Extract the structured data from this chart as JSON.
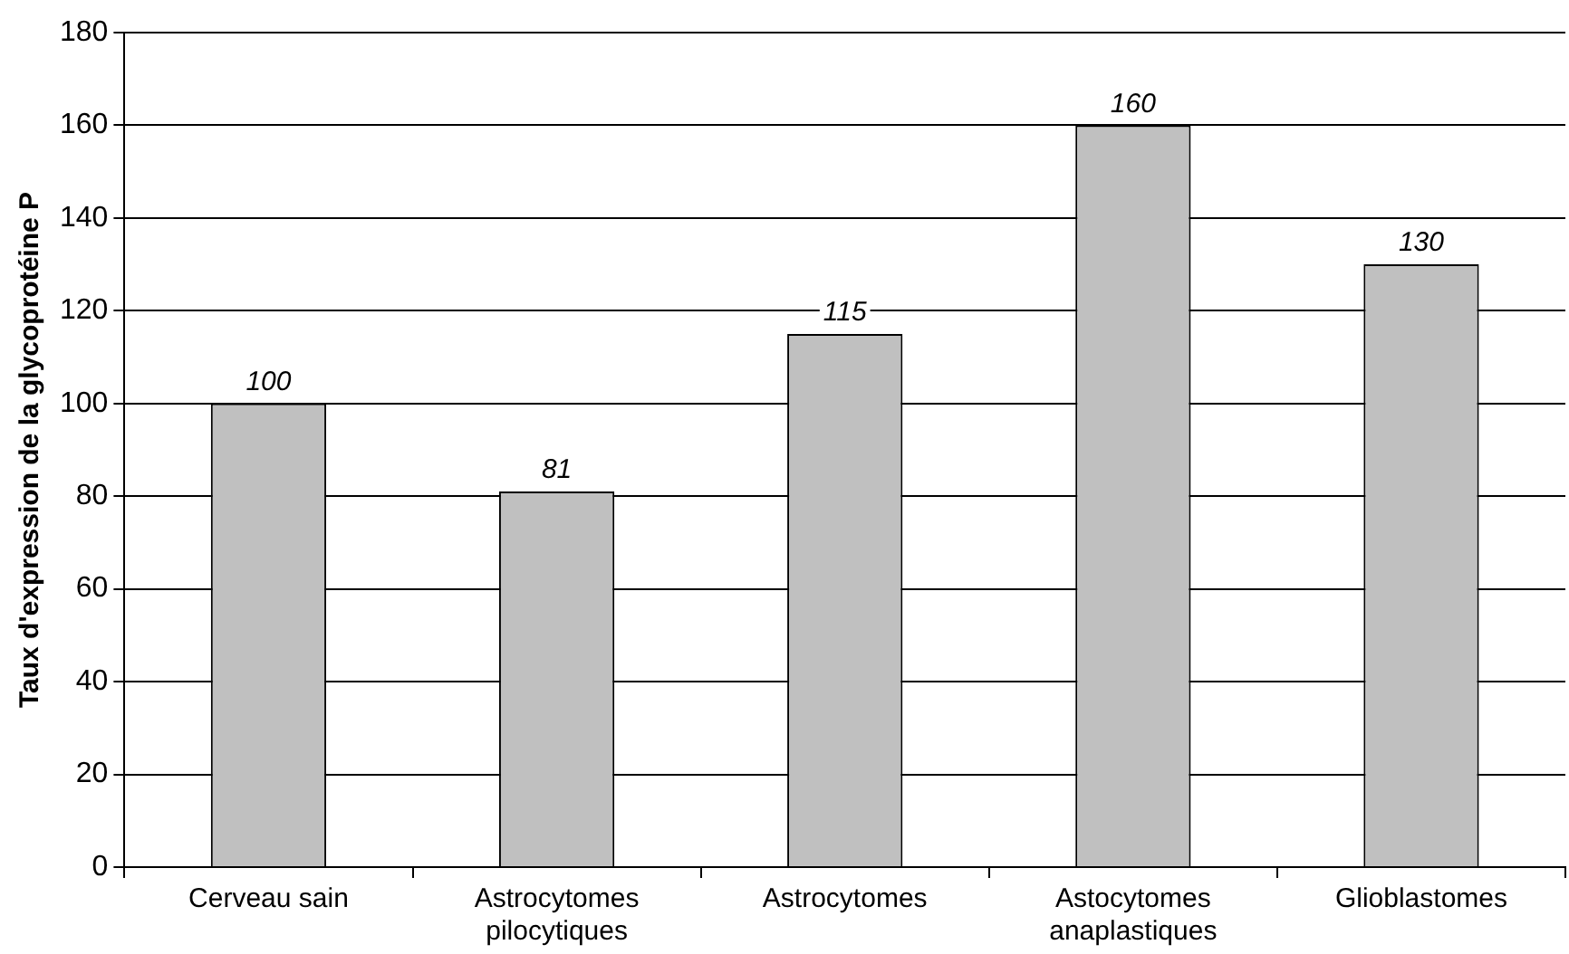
{
  "chart_data": {
    "type": "bar",
    "ylabel": "Taux d'expression de la glycoprotéine P",
    "categories": [
      "Cerveau sain",
      "Astrocytomes pilocytiques",
      "Astrocytomes",
      "Astocytomes anaplastiques",
      "Glioblastomes"
    ],
    "values": [
      100,
      81,
      115,
      160,
      130
    ],
    "color": "#c0c0c0",
    "ylim": [
      0,
      180
    ],
    "yticks": [
      0,
      20,
      40,
      60,
      80,
      100,
      120,
      140,
      160,
      180
    ],
    "grid": "y",
    "data_labels": true
  }
}
